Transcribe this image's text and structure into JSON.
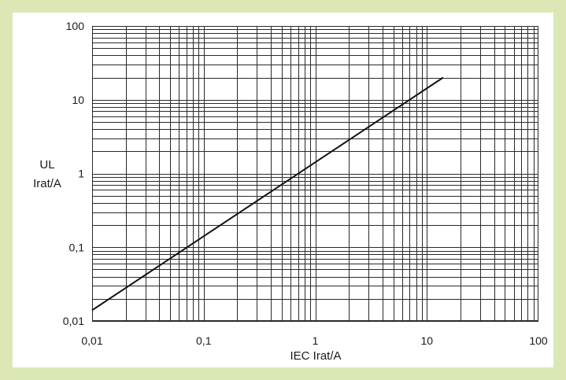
{
  "chart_data": {
    "type": "line",
    "xscale": "log",
    "yscale": "log",
    "xlabel": "IEC  Irat/A",
    "ylabel_lines": [
      "UL",
      "Irat/A"
    ],
    "xlim": [
      0.01,
      100
    ],
    "ylim": [
      0.01,
      100
    ],
    "grid": true,
    "xticks": [
      {
        "value": 0.01,
        "label": "0,01"
      },
      {
        "value": 0.1,
        "label": "0,1"
      },
      {
        "value": 1,
        "label": "1"
      },
      {
        "value": 10,
        "label": "10"
      },
      {
        "value": 100,
        "label": "100"
      }
    ],
    "yticks": [
      {
        "value": 0.01,
        "label": "0,01"
      },
      {
        "value": 0.1,
        "label": "0,1"
      },
      {
        "value": 1,
        "label": "1"
      },
      {
        "value": 10,
        "label": "10"
      },
      {
        "value": 100,
        "label": "100"
      }
    ],
    "series": [
      {
        "x": [
          0.01,
          14
        ],
        "y": [
          0.014,
          20
        ],
        "color": "#111111"
      }
    ]
  },
  "colors": {
    "background": "#dbe8b6",
    "plot": "#ffffff",
    "grid": "#2a2a2a",
    "line": "#111111"
  }
}
